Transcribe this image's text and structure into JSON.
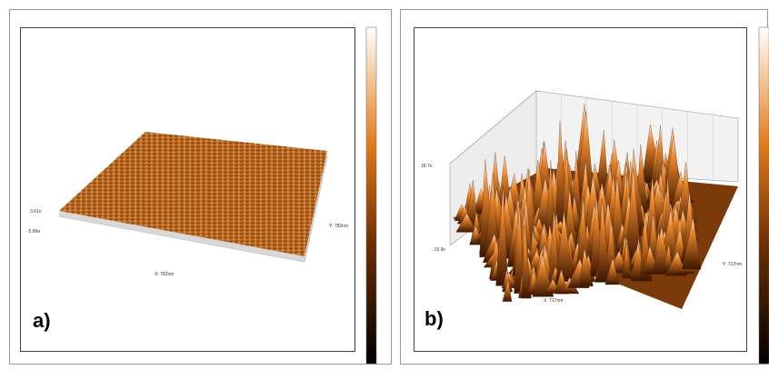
{
  "panels": [
    {
      "label": "a)",
      "z_max": "3.61n",
      "z_min": "-5.86n",
      "y_axis": "Y: 782nm",
      "x_axis": "X: 782nm"
    },
    {
      "label": "b)",
      "z_max": "18.7n",
      "z_min": "-15.9n",
      "y_axis": "Y: 717nm",
      "x_axis": "X: 717nm"
    }
  ]
}
